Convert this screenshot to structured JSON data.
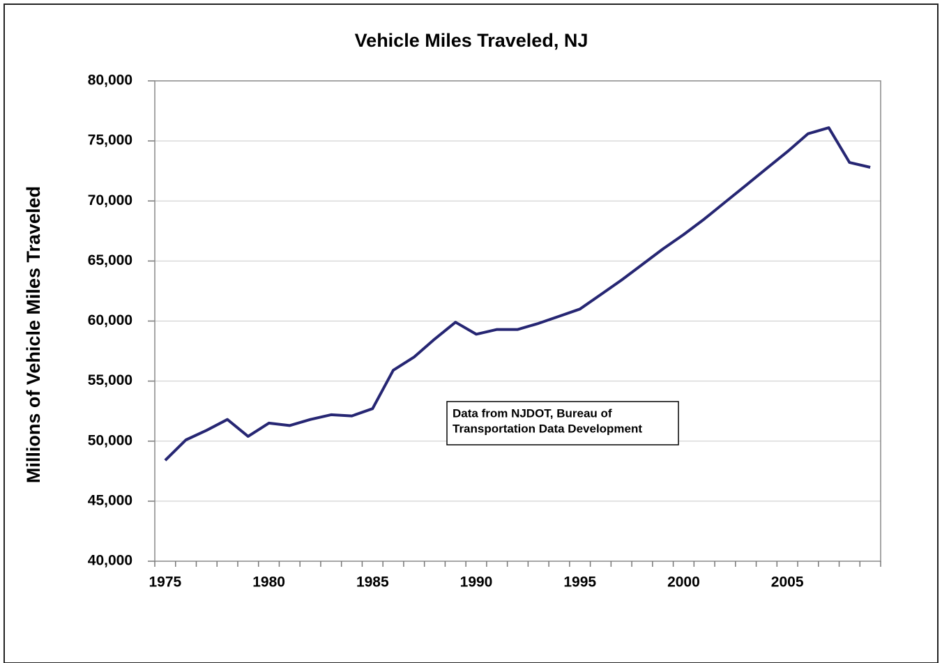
{
  "chart_data": {
    "type": "line",
    "title": "Vehicle Miles Traveled, NJ",
    "y_label": "Millions of Vehicle Miles Traveled",
    "annotation": [
      "Data from NJDOT, Bureau of",
      "Transportation Data Development"
    ],
    "categories": [
      "1975",
      null,
      null,
      null,
      null,
      "1980",
      null,
      null,
      null,
      null,
      "1985",
      null,
      null,
      null,
      null,
      "1990",
      null,
      null,
      null,
      null,
      "1995",
      null,
      null,
      null,
      null,
      "2000",
      null,
      null,
      null,
      null,
      "2005",
      null,
      null,
      null,
      null
    ],
    "values": [
      48400,
      50100,
      50900,
      51800,
      50400,
      51500,
      51300,
      51800,
      52200,
      52100,
      52700,
      55900,
      57000,
      58500,
      59900,
      58900,
      59300,
      59300,
      59800,
      60400,
      61000,
      62200,
      63400,
      64700,
      66000,
      67200,
      68500,
      69900,
      71300,
      72700,
      74100,
      75600,
      76100,
      73200,
      72800
    ],
    "color": "#262673",
    "ylim": [
      40000,
      80000
    ],
    "yticks": [
      {
        "value": 40000,
        "label": "40,000"
      },
      {
        "value": 45000,
        "label": "45,000"
      },
      {
        "value": 50000,
        "label": "50,000"
      },
      {
        "value": 55000,
        "label": "55,000"
      },
      {
        "value": 60000,
        "label": "60,000"
      },
      {
        "value": 65000,
        "label": "65,000"
      },
      {
        "value": 70000,
        "label": "70,000"
      },
      {
        "value": 75000,
        "label": "75,000"
      },
      {
        "value": 80000,
        "label": "80,000"
      }
    ],
    "grid": true
  }
}
